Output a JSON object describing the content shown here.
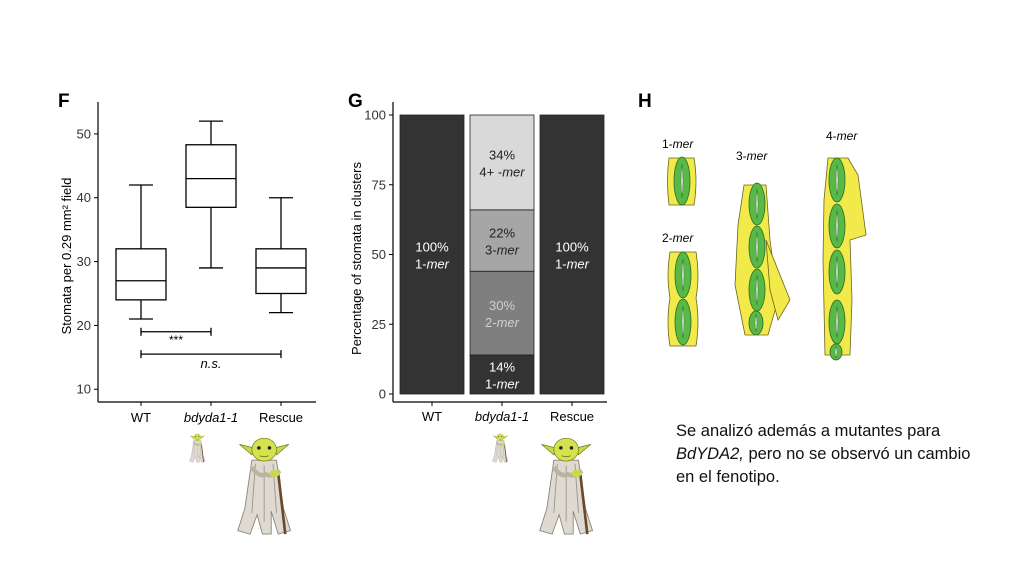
{
  "panels": {
    "f_label": "F",
    "g_label": "G",
    "h_label": "H"
  },
  "chart_data": [
    {
      "type": "box",
      "panel": "F",
      "ylabel": "Stomata per 0.29 mm² field",
      "ylim": [
        8,
        55
      ],
      "yticks": [
        10,
        20,
        30,
        40,
        50
      ],
      "categories": [
        "WT",
        "bdyda1-1",
        "Rescue"
      ],
      "boxes": [
        {
          "min": 21,
          "q1": 24,
          "median": 27,
          "q3": 32,
          "max": 42
        },
        {
          "min": 29,
          "q1": 38.5,
          "median": 43,
          "q3": 48.3,
          "max": 52
        },
        {
          "min": 22,
          "q1": 25,
          "median": 29,
          "q3": 32,
          "max": 40
        }
      ],
      "brackets": [
        {
          "from": 0,
          "to": 1,
          "y": 19,
          "label": "***"
        },
        {
          "from": 0,
          "to": 2,
          "y": 15.5,
          "label": "n.s."
        }
      ]
    },
    {
      "type": "stacked-bar",
      "panel": "G",
      "ylabel": "Percentage of stomata in clusters",
      "ylim": [
        0,
        100
      ],
      "yticks": [
        0,
        25,
        50,
        75,
        100
      ],
      "categories": [
        "WT",
        "bdyda1-1",
        "Rescue"
      ],
      "series": [
        {
          "name": "1-mer",
          "values": [
            100,
            14,
            100
          ],
          "color": "#333333"
        },
        {
          "name": "2-mer",
          "values": [
            0,
            30,
            0
          ],
          "color": "#7f7f7f"
        },
        {
          "name": "3-mer",
          "values": [
            0,
            22,
            0
          ],
          "color": "#a6a6a6"
        },
        {
          "name": "4+ -mer",
          "values": [
            0,
            34,
            0
          ],
          "color": "#d9d9d9"
        }
      ],
      "segment_labels": [
        [
          {
            "pct": "100%",
            "name": "1-mer"
          }
        ],
        [
          {
            "pct": "14%",
            "name": "1-mer"
          },
          {
            "pct": "30%",
            "name": "2-mer"
          },
          {
            "pct": "22%",
            "name": "3-mer"
          },
          {
            "pct": "34%",
            "name": "4+ -mer"
          }
        ],
        [
          {
            "pct": "100%",
            "name": "1-mer"
          }
        ]
      ]
    }
  ],
  "diagram_h": {
    "labels": {
      "one": "1-mer",
      "two": "2-mer",
      "three": "3-mer",
      "four": "4-mer"
    },
    "colors": {
      "guard": "#58b947",
      "subsidiary": "#f2e94a"
    }
  },
  "caption": {
    "line1": "Se analizó además a mutantes para",
    "italic": "BdYDA2,",
    "line2_rest": " pero no se observó un cambio",
    "line3": "en el fenotipo."
  },
  "icons": {
    "figure": "yoda-figure-icon"
  }
}
